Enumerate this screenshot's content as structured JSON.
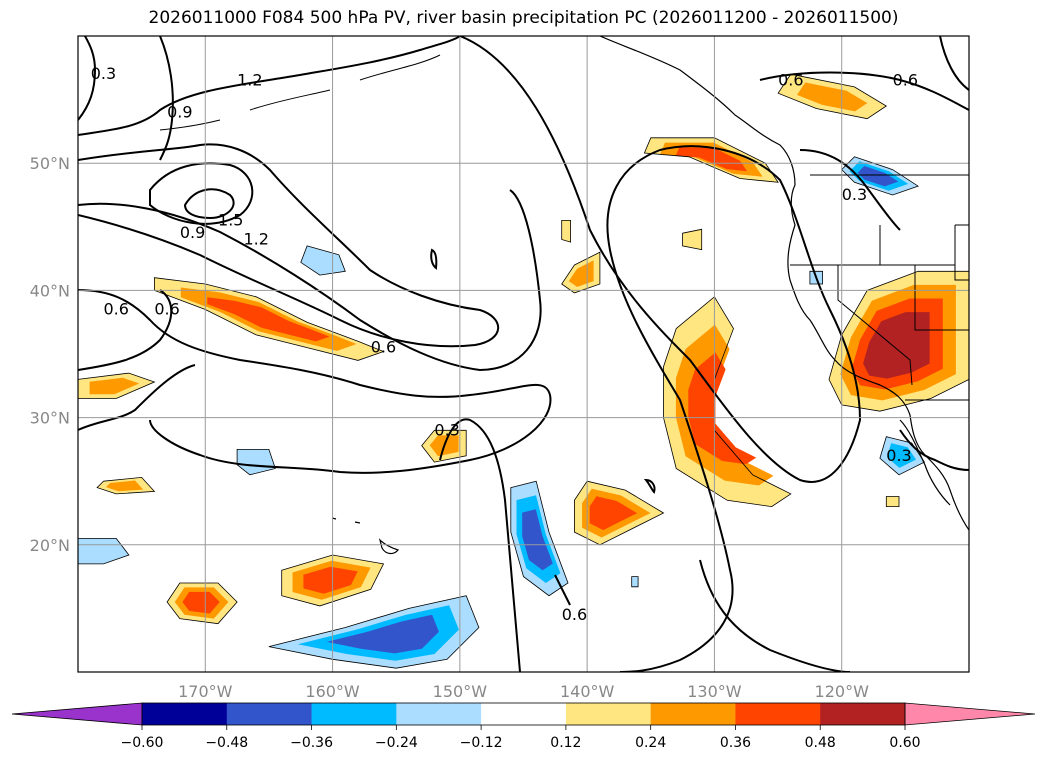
{
  "chart_data": {
    "type": "heatmap",
    "title": "2026011000 F084 500 hPa PV, river basin precipitation PC (2026011200 - 2026011500)",
    "map": {
      "lon_range": [
        -180,
        -110
      ],
      "lat_range": [
        10,
        60
      ],
      "lon_ticks": [
        {
          "value": -170,
          "label": "170°W"
        },
        {
          "value": -160,
          "label": "160°W"
        },
        {
          "value": -150,
          "label": "150°W"
        },
        {
          "value": -140,
          "label": "140°W"
        },
        {
          "value": -130,
          "label": "130°W"
        },
        {
          "value": -120,
          "label": "120°W"
        }
      ],
      "lat_ticks": [
        {
          "value": 20,
          "label": "20°N"
        },
        {
          "value": 30,
          "label": "30°N"
        },
        {
          "value": 40,
          "label": "40°N"
        },
        {
          "value": 50,
          "label": "50°N"
        }
      ],
      "grid": true
    },
    "colorbar": {
      "levels": [
        -0.6,
        -0.48,
        -0.36,
        -0.24,
        -0.12,
        0.12,
        0.24,
        0.36,
        0.48,
        0.6
      ],
      "labels": [
        "−0.60",
        "−0.48",
        "−0.36",
        "−0.24",
        "−0.12",
        "0.12",
        "0.24",
        "0.36",
        "0.48",
        "0.60"
      ],
      "colors": [
        "#9933cc",
        "#000099",
        "#3355cc",
        "#00bbff",
        "#aaddff",
        "#ffffff",
        "#ffe680",
        "#ff9900",
        "#ff4400",
        "#b22222",
        "#ff88aa"
      ],
      "extend": "both"
    },
    "pv_contour_labels": [
      {
        "text": "1.2",
        "lon": -166.5,
        "lat": 56.5
      },
      {
        "text": "1.5",
        "lon": -168,
        "lat": 45.5
      },
      {
        "text": "1.2",
        "lon": -166,
        "lat": 44.0
      },
      {
        "text": "0.9",
        "lon": -171,
        "lat": 44.5
      },
      {
        "text": "0.6",
        "lon": -177,
        "lat": 38.5
      },
      {
        "text": "0.6",
        "lon": -173,
        "lat": 38.5
      },
      {
        "text": "0.6",
        "lon": -156,
        "lat": 35.5
      },
      {
        "text": "0.3",
        "lon": -178,
        "lat": 57.0
      },
      {
        "text": "0.9",
        "lon": -172,
        "lat": 54.0
      },
      {
        "text": "0.3",
        "lon": -151,
        "lat": 29.0
      },
      {
        "text": "0.6",
        "lon": -141,
        "lat": 14.5
      },
      {
        "text": "0.6",
        "lon": -124,
        "lat": 56.5
      },
      {
        "text": "0.6",
        "lon": -115,
        "lat": 56.5
      },
      {
        "text": "0.3",
        "lon": -119,
        "lat": 47.5
      },
      {
        "text": "0.3",
        "lon": -115.5,
        "lat": 27.0
      }
    ],
    "precip_regions": [
      {
        "sign": "pos",
        "peak": 0.42,
        "pts": [
          [
            -174,
            41
          ],
          [
            -170,
            40.5
          ],
          [
            -166,
            39.5
          ],
          [
            -162,
            37.5
          ],
          [
            -158,
            36
          ],
          [
            -156,
            35.2
          ],
          [
            -158,
            34.5
          ],
          [
            -162,
            35.5
          ],
          [
            -166,
            36.5
          ],
          [
            -170,
            38.5
          ],
          [
            -174,
            40
          ]
        ]
      },
      {
        "sign": "pos",
        "peak": 0.3,
        "pts": [
          [
            -180,
            33
          ],
          [
            -176,
            33.5
          ],
          [
            -174,
            32.8
          ],
          [
            -177,
            31.5
          ],
          [
            -180,
            31.5
          ]
        ]
      },
      {
        "sign": "pos",
        "peak": 0.24,
        "pts": [
          [
            -178,
            25
          ],
          [
            -175,
            25.3
          ],
          [
            -174,
            24.2
          ],
          [
            -177,
            24
          ],
          [
            -178.5,
            24.5
          ]
        ]
      },
      {
        "sign": "pos",
        "peak": 0.38,
        "pts": [
          [
            -172,
            17
          ],
          [
            -169,
            17
          ],
          [
            -167.5,
            15.5
          ],
          [
            -169,
            13.8
          ],
          [
            -172,
            14.2
          ],
          [
            -173,
            15.5
          ]
        ]
      },
      {
        "sign": "pos",
        "peak": 0.4,
        "pts": [
          [
            -164,
            18
          ],
          [
            -160,
            19.2
          ],
          [
            -156,
            18.5
          ],
          [
            -157,
            16.5
          ],
          [
            -161,
            15.2
          ],
          [
            -164,
            16
          ]
        ]
      },
      {
        "sign": "pos",
        "peak": 0.3,
        "pts": [
          [
            -152,
            29
          ],
          [
            -149.5,
            29
          ],
          [
            -149.5,
            27
          ],
          [
            -152,
            26.5
          ],
          [
            -153,
            27.8
          ]
        ]
      },
      {
        "sign": "pos",
        "peak": 0.4,
        "pts": [
          [
            -140,
            25
          ],
          [
            -137,
            24.3
          ],
          [
            -134,
            22.5
          ],
          [
            -137,
            21
          ],
          [
            -139,
            20
          ],
          [
            -141,
            21
          ],
          [
            -141,
            23.5
          ]
        ]
      },
      {
        "sign": "pos",
        "peak": 0.45,
        "pts": [
          [
            -133,
            37
          ],
          [
            -130,
            39.5
          ],
          [
            -128.5,
            37
          ],
          [
            -130,
            33
          ],
          [
            -130,
            29
          ],
          [
            -127,
            25.5
          ],
          [
            -124,
            24
          ],
          [
            -125.5,
            23
          ],
          [
            -129,
            23.5
          ],
          [
            -133,
            26
          ],
          [
            -134,
            30
          ],
          [
            -134,
            34
          ]
        ]
      },
      {
        "sign": "pos",
        "peak": 0.28,
        "pts": [
          [
            -141,
            42
          ],
          [
            -139,
            43
          ],
          [
            -139,
            40.5
          ],
          [
            -141,
            39.8
          ],
          [
            -142,
            40.5
          ]
        ]
      },
      {
        "sign": "pos",
        "peak": 0.22,
        "pts": [
          [
            -142,
            45.5
          ],
          [
            -141.3,
            45.5
          ],
          [
            -141.3,
            43.8
          ],
          [
            -142,
            44
          ]
        ]
      },
      {
        "sign": "pos",
        "peak": 0.22,
        "pts": [
          [
            -132.5,
            44.5
          ],
          [
            -131,
            44.8
          ],
          [
            -131,
            43.2
          ],
          [
            -132.5,
            43.5
          ]
        ]
      },
      {
        "sign": "pos",
        "peak": 0.42,
        "pts": [
          [
            -135,
            52
          ],
          [
            -130,
            52
          ],
          [
            -126,
            50
          ],
          [
            -125,
            48.5
          ],
          [
            -128,
            48.8
          ],
          [
            -132,
            50.5
          ],
          [
            -135.5,
            50.8
          ]
        ]
      },
      {
        "sign": "pos",
        "peak": 0.3,
        "pts": [
          [
            -124,
            57
          ],
          [
            -119,
            56
          ],
          [
            -116.5,
            54.5
          ],
          [
            -118,
            53.5
          ],
          [
            -122,
            54.3
          ],
          [
            -125,
            55.5
          ]
        ]
      },
      {
        "sign": "pos",
        "peak": 0.48,
        "pts": [
          [
            -118,
            40
          ],
          [
            -114,
            41.5
          ],
          [
            -110,
            41.5
          ],
          [
            -110,
            33
          ],
          [
            -113,
            31.5
          ],
          [
            -117,
            30.5
          ],
          [
            -120,
            31
          ],
          [
            -121,
            33
          ],
          [
            -120,
            36.5
          ]
        ]
      },
      {
        "sign": "pos",
        "peak": 0.2,
        "pts": [
          [
            -116.5,
            23.8
          ],
          [
            -115.5,
            23.8
          ],
          [
            -115.5,
            23
          ],
          [
            -116.5,
            23
          ]
        ]
      },
      {
        "sign": "neg",
        "peak": -0.4,
        "pts": [
          [
            -146,
            24.5
          ],
          [
            -144,
            25
          ],
          [
            -143,
            21
          ],
          [
            -141.5,
            17
          ],
          [
            -143,
            16
          ],
          [
            -145,
            17.5
          ],
          [
            -146,
            21
          ]
        ]
      },
      {
        "sign": "neg",
        "peak": -0.4,
        "pts": [
          [
            -165,
            12
          ],
          [
            -159,
            13.5
          ],
          [
            -154,
            15
          ],
          [
            -149.5,
            16
          ],
          [
            -148.5,
            13.5
          ],
          [
            -151,
            11
          ],
          [
            -155,
            10.3
          ],
          [
            -160,
            11
          ]
        ]
      },
      {
        "sign": "neg",
        "peak": -0.2,
        "pts": [
          [
            -180,
            20.5
          ],
          [
            -177,
            20.5
          ],
          [
            -176,
            19.2
          ],
          [
            -178,
            18.5
          ],
          [
            -180,
            18.5
          ]
        ]
      },
      {
        "sign": "neg",
        "peak": -0.2,
        "pts": [
          [
            -167.5,
            27.5
          ],
          [
            -165,
            27.5
          ],
          [
            -164.5,
            26
          ],
          [
            -166.5,
            25.5
          ],
          [
            -167.5,
            26.3
          ]
        ]
      },
      {
        "sign": "neg",
        "peak": -0.22,
        "pts": [
          [
            -162,
            43.5
          ],
          [
            -159.5,
            42.8
          ],
          [
            -159,
            41.5
          ],
          [
            -161,
            41.2
          ],
          [
            -162.5,
            42.2
          ]
        ]
      },
      {
        "sign": "neg",
        "peak": -0.4,
        "pts": [
          [
            -119,
            50.5
          ],
          [
            -116,
            49.5
          ],
          [
            -114,
            48.2
          ],
          [
            -116,
            47.5
          ],
          [
            -119,
            48.5
          ],
          [
            -120,
            49.5
          ]
        ]
      },
      {
        "sign": "neg",
        "peak": -0.3,
        "pts": [
          [
            -116.5,
            28.5
          ],
          [
            -114.5,
            28
          ],
          [
            -113.5,
            26.5
          ],
          [
            -115.5,
            25.5
          ],
          [
            -117,
            26.8
          ]
        ]
      },
      {
        "sign": "neg",
        "peak": -0.18,
        "pts": [
          [
            -122.5,
            41.5
          ],
          [
            -121.5,
            41.5
          ],
          [
            -121.5,
            40.5
          ],
          [
            -122.5,
            40.5
          ]
        ]
      },
      {
        "sign": "neg",
        "peak": -0.15,
        "pts": [
          [
            -136.5,
            17.5
          ],
          [
            -136,
            17.5
          ],
          [
            -136,
            16.7
          ],
          [
            -136.5,
            16.7
          ]
        ]
      }
    ]
  }
}
